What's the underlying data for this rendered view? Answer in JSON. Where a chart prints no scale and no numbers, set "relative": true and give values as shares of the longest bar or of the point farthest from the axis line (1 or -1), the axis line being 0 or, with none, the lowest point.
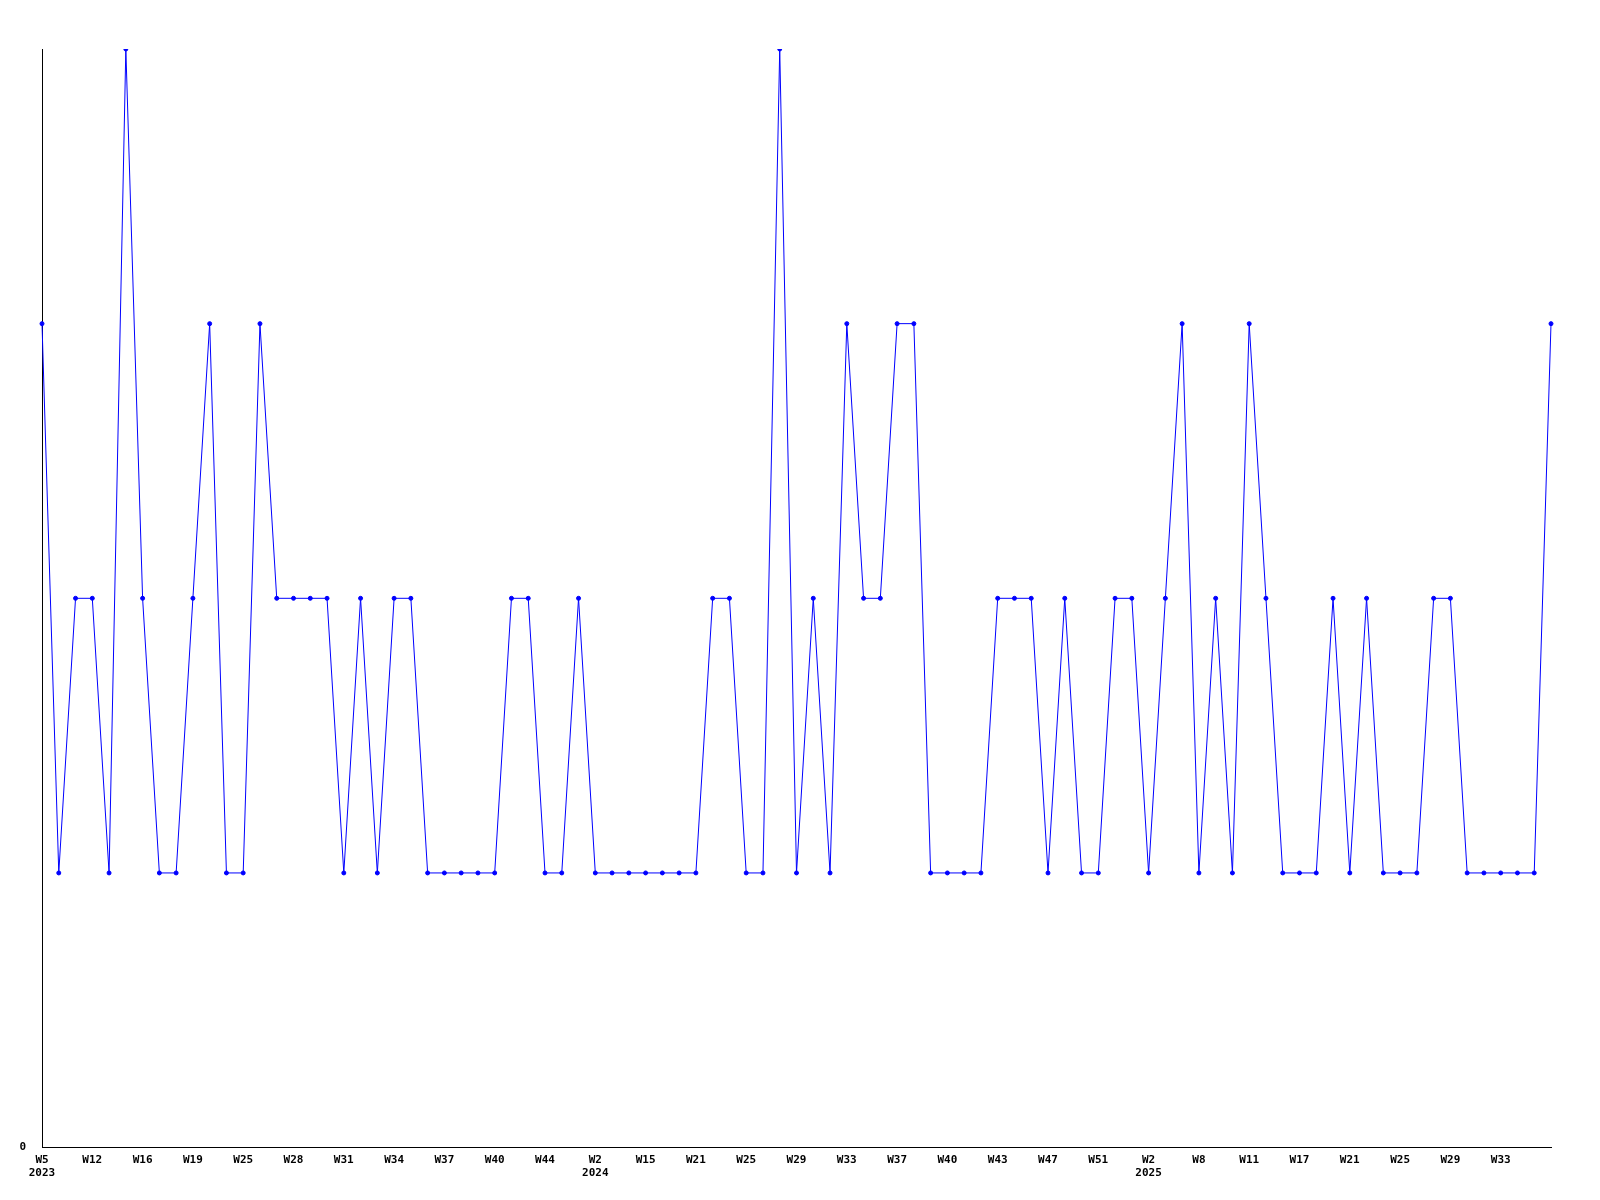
{
  "chart_data": {
    "type": "line",
    "relative": true,
    "color": "#0000ff",
    "marker": "circle",
    "grid": false,
    "legend": false,
    "annotations": [
      "0"
    ],
    "categories": [
      "W5\n2023",
      null,
      null,
      "W12",
      null,
      null,
      "W16",
      null,
      null,
      "W19",
      null,
      null,
      "W25",
      null,
      null,
      "W28",
      null,
      null,
      "W31",
      null,
      null,
      "W34",
      null,
      null,
      "W37",
      null,
      null,
      "W40",
      null,
      null,
      "W44",
      null,
      null,
      "W2\n2024",
      null,
      null,
      "W15",
      null,
      null,
      "W21",
      null,
      null,
      "W25",
      null,
      null,
      "W29",
      null,
      null,
      "W33",
      null,
      null,
      "W37",
      null,
      null,
      "W40",
      null,
      null,
      "W43",
      null,
      null,
      "W47",
      null,
      null,
      "W51",
      null,
      null,
      "W2\n2025",
      null,
      null,
      "W8",
      null,
      null,
      "W11",
      null,
      null,
      "W17",
      null,
      null,
      "W21",
      null,
      null,
      "W25",
      null,
      null,
      "W29",
      null,
      null,
      "W33",
      null,
      null,
      null
    ],
    "values": [
      0.75,
      0.25,
      0.5,
      0.5,
      0.25,
      1,
      0.5,
      0.25,
      0.25,
      0.5,
      0.75,
      0.25,
      0.25,
      0.75,
      0.5,
      0.5,
      0.5,
      0.5,
      0.25,
      0.5,
      0.25,
      0.5,
      0.5,
      0.25,
      0.25,
      0.25,
      0.25,
      0.25,
      0.5,
      0.5,
      0.25,
      0.25,
      0.5,
      0.25,
      0.25,
      0.25,
      0.25,
      0.25,
      0.25,
      0.25,
      0.5,
      0.5,
      0.25,
      0.25,
      1,
      0.25,
      0.5,
      0.25,
      0.75,
      0.5,
      0.5,
      0.75,
      0.75,
      0.25,
      0.25,
      0.25,
      0.25,
      0.5,
      0.5,
      0.5,
      0.25,
      0.5,
      0.25,
      0.25,
      0.5,
      0.5,
      0.25,
      0.5,
      0.75,
      0.25,
      0.5,
      0.25,
      0.75,
      0.5,
      0.25,
      0.25,
      0.25,
      0.5,
      0.25,
      0.5,
      0.25,
      0.25,
      0.25,
      0.5,
      0.5,
      0.25,
      0.25,
      0.25,
      0.25,
      0.25,
      0.75
    ]
  }
}
